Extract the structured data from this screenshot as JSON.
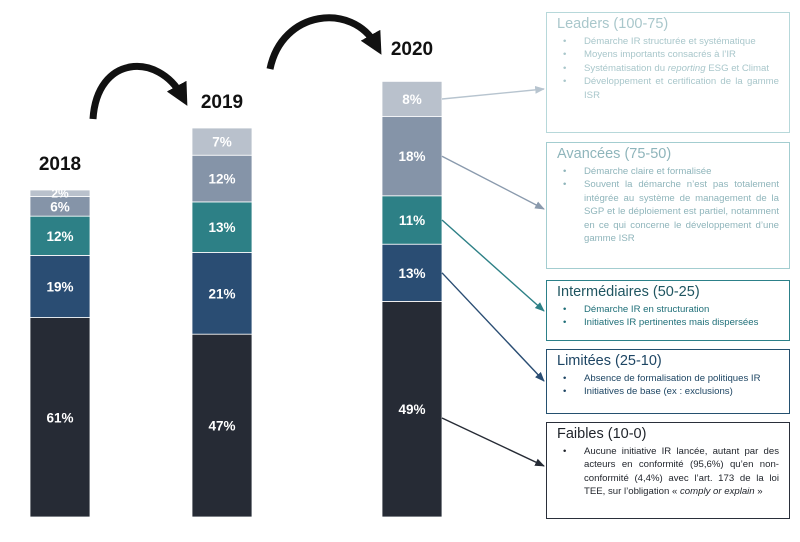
{
  "chart_data": {
    "type": "bar",
    "stacked": true,
    "categories": [
      "2018",
      "2019",
      "2020"
    ],
    "series": [
      {
        "name": "Faibles (10-0)",
        "values": [
          61,
          47,
          49
        ],
        "color": "#262b35"
      },
      {
        "name": "Limitées (25-10)",
        "values": [
          19,
          21,
          13
        ],
        "color": "#2a4d73"
      },
      {
        "name": "Intermédiaires (50-25)",
        "values": [
          12,
          13,
          11
        ],
        "color": "#2d8086"
      },
      {
        "name": "Avancées (75-50)",
        "values": [
          6,
          12,
          18
        ],
        "color": "#8594a8"
      },
      {
        "name": "Leaders (100-75)",
        "values": [
          2,
          7,
          8
        ],
        "color": "#b9c1cc"
      }
    ],
    "labels": [
      [
        "61%",
        "47%",
        "49%"
      ],
      [
        "19%",
        "21%",
        "13%"
      ],
      [
        "12%",
        "13%",
        "11%"
      ],
      [
        "6%",
        "12%",
        "18%"
      ],
      [
        "2%",
        "7%",
        "8%"
      ]
    ],
    "totals": [
      100,
      100,
      100
    ]
  },
  "legend_boxes": {
    "leaders": {
      "title": "Leaders (100-75)",
      "items": [
        {
          "text": "Démarche IR structurée et systématique"
        },
        {
          "text": "Moyens importants consacrés à l’IR"
        },
        {
          "text_before": "Systématisation du ",
          "text_em": "reporting",
          "text_after": " ESG et Climat"
        },
        {
          "text": "Développement et certification de la gamme ISR"
        }
      ]
    },
    "avancees": {
      "title": "Avancées (75-50)",
      "items": [
        {
          "text": "Démarche claire et formalisée"
        },
        {
          "text": "Souvent la démarche n’est pas totalement intégrée au système de management de la SGP et le déploiement est partiel, notamment en ce qui concerne le développement d’une gamme ISR"
        }
      ]
    },
    "intermediaires": {
      "title": "Intermédiaires (50-25)",
      "items": [
        {
          "text": "Démarche IR en structuration"
        },
        {
          "text": "Initiatives IR pertinentes mais dispersées"
        }
      ]
    },
    "limitees": {
      "title": "Limitées (25-10)",
      "items": [
        {
          "text": "Absence de formalisation de politiques IR"
        },
        {
          "text": "Initiatives de base (ex : exclusions)"
        }
      ]
    },
    "faibles": {
      "title": "Faibles (10-0)",
      "items": [
        {
          "text_before": "Aucune initiative IR lancée, autant par des acteurs en conformité (95,6%) qu’en non-conformité (4,4%) avec l’art. 173 de la loi TEE, sur l’obligation « ",
          "text_em": "comply or explain",
          "text_after": " »"
        }
      ]
    }
  }
}
